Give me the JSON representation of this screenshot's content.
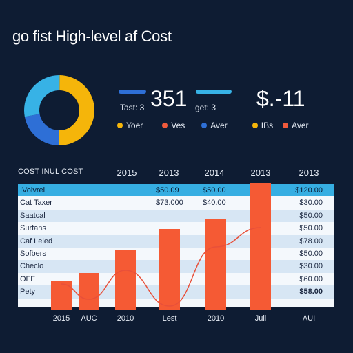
{
  "title": "go fist High-level af Cost",
  "donut": {
    "segments": [
      {
        "color": "#f5b50a",
        "value": 50
      },
      {
        "color": "#2e6fd6",
        "value": 22
      },
      {
        "color": "#37b2e6",
        "value": 28
      }
    ]
  },
  "kpis": [
    {
      "value": "351",
      "caption": "Tast: 3",
      "caption2": "get: 3",
      "bar_color": "#2e6fd6",
      "bar2_color": "#37b2e6"
    },
    {
      "value": "$.-11"
    }
  ],
  "legend": [
    {
      "label": "Yoer",
      "color": "#f5b50a"
    },
    {
      "label": "Ves",
      "color": "#f05a3c"
    },
    {
      "label": "Aver",
      "color": "#2e6fd6"
    },
    {
      "label": "IBs",
      "color": "#f5b50a"
    },
    {
      "label": "Aver",
      "color": "#f05a3c"
    }
  ],
  "table": {
    "title": "COST INUL COST",
    "col_headers": [
      "2015",
      "2013",
      "2014",
      "2013",
      "2013"
    ],
    "rows": [
      {
        "label": "IVolvrel",
        "mid1": "$50.09",
        "mid2": "$50.00",
        "value": "$120.00"
      },
      {
        "label": "Cat Taxer",
        "mid1": "$73.000",
        "mid2": "$40.00",
        "value": "$30.00"
      },
      {
        "label": "Saatcal",
        "mid1": "",
        "mid2": "",
        "value": "$50.00"
      },
      {
        "label": "Surfans",
        "mid1": "",
        "mid2": "",
        "value": "$50.00"
      },
      {
        "label": "Caf Leled",
        "mid1": "",
        "mid2": "",
        "value": "$78.00"
      },
      {
        "label": "Sofbers",
        "mid1": "",
        "mid2": "",
        "value": "$50.00"
      },
      {
        "label": "Checlo",
        "mid1": "",
        "mid2": "",
        "value": "$30.00"
      },
      {
        "label": "OFF",
        "mid1": "",
        "mid2": "",
        "value": "$60.00"
      },
      {
        "label": "Pety",
        "mid1": "",
        "mid2": "",
        "value": "$58.00"
      }
    ]
  },
  "chart_data": {
    "type": "bar",
    "categories": [
      "2015",
      "AUC",
      "2010",
      "Lest",
      "2010",
      "Jull",
      "AUI"
    ],
    "series": [
      {
        "values": [
          42,
          54,
          88,
          118,
          132,
          185,
          null
        ],
        "color": "#f55a34"
      }
    ],
    "trend": [
      8,
      16,
      58,
      6,
      92,
      120,
      null
    ],
    "ylim": [
      0,
      200
    ],
    "grid": false
  }
}
